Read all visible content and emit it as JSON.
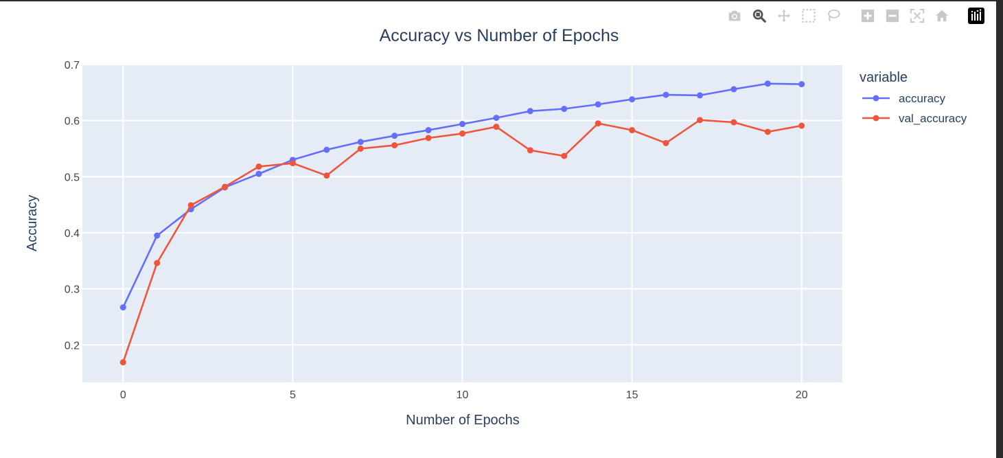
{
  "modebar": {
    "buttons": [
      {
        "name": "camera-icon"
      },
      {
        "name": "zoom-icon",
        "active": true
      },
      {
        "name": "pan-icon"
      },
      {
        "name": "box-select-icon"
      },
      {
        "name": "lasso-select-icon"
      },
      {
        "name": "zoom-in-icon"
      },
      {
        "name": "zoom-out-icon"
      },
      {
        "name": "autoscale-icon"
      },
      {
        "name": "reset-axes-icon"
      },
      {
        "name": "plotly-logo-icon"
      }
    ],
    "icon_color": "#c8c8c8",
    "active_color": "#555555"
  },
  "chart_data": {
    "type": "line",
    "title": "Accuracy vs Number of Epochs",
    "xlabel": "Number of Epochs",
    "ylabel": "Accuracy",
    "x": [
      0,
      1,
      2,
      3,
      4,
      5,
      6,
      7,
      8,
      9,
      10,
      11,
      12,
      13,
      14,
      15,
      16,
      17,
      18,
      19,
      20
    ],
    "xlim": [
      -1.2,
      21.2
    ],
    "ylim": [
      0.133,
      0.7
    ],
    "xticks": [
      0,
      5,
      10,
      15,
      20
    ],
    "yticks": [
      0.2,
      0.3,
      0.4,
      0.5,
      0.6,
      0.7
    ],
    "ytick_labels": [
      "0.2",
      "0.3",
      "0.4",
      "0.5",
      "0.6",
      "0.7"
    ],
    "grid": true,
    "legend": {
      "title": "variable",
      "position": "right"
    },
    "series": [
      {
        "name": "accuracy",
        "color": "#636efa",
        "values": [
          0.267,
          0.395,
          0.442,
          0.481,
          0.505,
          0.53,
          0.548,
          0.562,
          0.573,
          0.583,
          0.594,
          0.605,
          0.617,
          0.621,
          0.629,
          0.638,
          0.646,
          0.645,
          0.656,
          0.666,
          0.665
        ]
      },
      {
        "name": "val_accuracy",
        "color": "#ef553b",
        "values": [
          0.169,
          0.346,
          0.449,
          0.482,
          0.518,
          0.524,
          0.502,
          0.55,
          0.556,
          0.569,
          0.577,
          0.589,
          0.547,
          0.537,
          0.595,
          0.583,
          0.56,
          0.601,
          0.597,
          0.58,
          0.591
        ]
      }
    ],
    "colors": {
      "plot_bg": "#e5ecf6",
      "grid": "#ffffff",
      "text": "#2a3f5f",
      "tick_text": "#444444"
    }
  }
}
